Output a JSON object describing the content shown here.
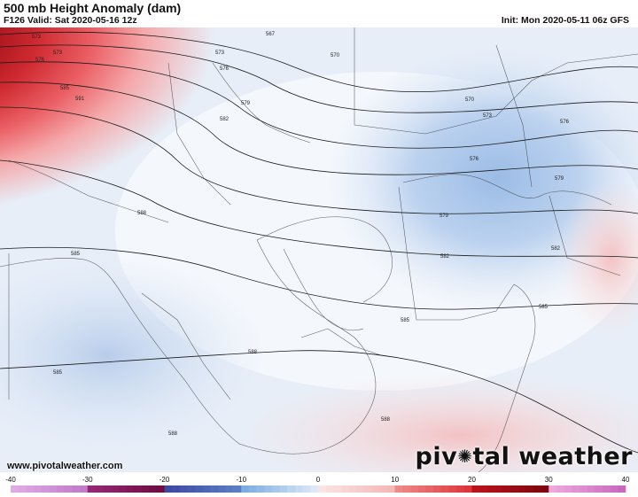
{
  "header": {
    "title": "500 mb Height Anomaly (dam)",
    "valid": "F126 Valid: Sat 2020-05-16 12z",
    "init": "Init: Mon 2020-05-11 06z GFS"
  },
  "colorbar": {
    "ticks": [
      "-40",
      "-30",
      "-20",
      "-10",
      "0",
      "10",
      "20",
      "30",
      "40"
    ],
    "min": -40,
    "max": 40
  },
  "contours": {
    "labels": [
      "573",
      "576",
      "579",
      "582",
      "585",
      "588",
      "591",
      "567",
      "570"
    ]
  },
  "contour_labels": [
    {
      "text": "573",
      "id": "a"
    },
    {
      "text": "576",
      "id": "b"
    },
    {
      "text": "579",
      "id": "c"
    },
    {
      "text": "582",
      "id": "d"
    },
    {
      "text": "585",
      "id": "e"
    },
    {
      "text": "588",
      "id": "f"
    },
    {
      "text": "591",
      "id": "g"
    },
    {
      "text": "567",
      "id": "h"
    },
    {
      "text": "570",
      "id": "i"
    }
  ],
  "colors": {
    "strong_positive": "#8c0a0f",
    "positive": "#e8444b",
    "weak_positive": "#f7c7c7",
    "neutral": "#ffffff",
    "weak_negative": "#dbe6f5",
    "negative": "#b2c9ea"
  },
  "footer": {
    "url": "www.pivotalweather.com",
    "brand_left": "piv",
    "brand_right": "tal weather"
  }
}
